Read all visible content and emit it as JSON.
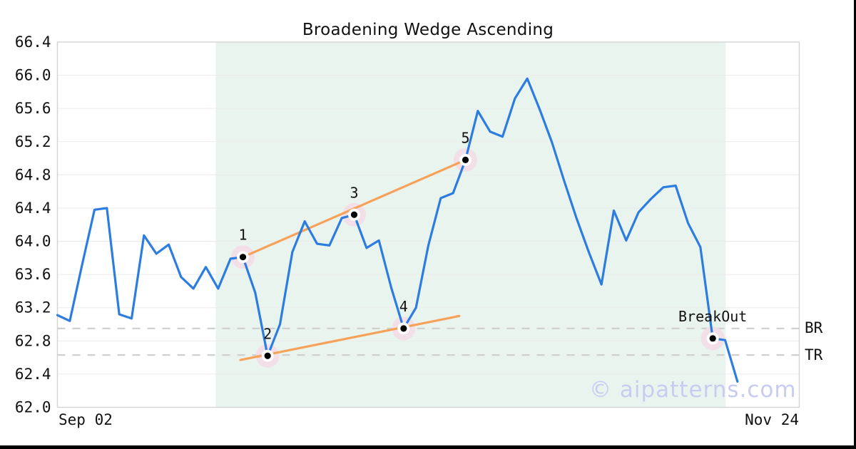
{
  "page": {
    "title": "Broadening Wedge Ascending",
    "watermark": "© aipatterns.com"
  },
  "chart_data": {
    "type": "line",
    "title": "Broadening Wedge Ascending",
    "xlim": [
      0,
      60
    ],
    "ylim": [
      62.0,
      66.4
    ],
    "y_ticks": [
      62.0,
      62.4,
      62.8,
      63.2,
      63.6,
      64.0,
      64.4,
      64.8,
      65.2,
      65.6,
      66.0,
      66.4
    ],
    "x_tick_labels": [
      "Sep 02",
      "Nov 24"
    ],
    "grid": "horizontal",
    "legend": false,
    "series": [
      {
        "name": "price",
        "values": [
          63.11,
          63.04,
          63.72,
          64.38,
          64.4,
          63.12,
          63.07,
          64.07,
          63.85,
          63.96,
          63.57,
          63.43,
          63.69,
          63.43,
          63.79,
          63.81,
          63.38,
          62.62,
          63.0,
          63.87,
          64.24,
          63.97,
          63.95,
          64.28,
          64.32,
          63.92,
          64.01,
          63.44,
          62.95,
          63.2,
          63.95,
          64.52,
          64.58,
          64.98,
          65.57,
          65.32,
          65.26,
          65.72,
          65.96,
          65.59,
          65.19,
          64.72,
          64.27,
          63.86,
          63.48,
          64.37,
          64.01,
          64.35,
          64.51,
          64.65,
          64.67,
          64.22,
          63.93,
          62.83,
          62.81,
          62.31
        ]
      }
    ],
    "trendlines": [
      {
        "name": "upper",
        "x1": 15,
        "y1": 63.81,
        "x2": 33,
        "y2": 64.98
      },
      {
        "name": "lower",
        "x1": 14.8,
        "y1": 62.57,
        "x2": 32.5,
        "y2": 63.1
      }
    ],
    "pattern_points": [
      {
        "label": "1",
        "index": 15,
        "value": 63.81
      },
      {
        "label": "2",
        "index": 17,
        "value": 62.62
      },
      {
        "label": "3",
        "index": 24,
        "value": 64.32
      },
      {
        "label": "4",
        "index": 28,
        "value": 62.95
      },
      {
        "label": "5",
        "index": 33,
        "value": 64.98
      },
      {
        "label": "BreakOut",
        "index": 53,
        "value": 62.83
      }
    ],
    "levels": [
      {
        "label": "BR",
        "value": 62.95
      },
      {
        "label": "TR",
        "value": 62.63
      }
    ],
    "shaded_region": {
      "x1": 12.8,
      "x2": 54.05
    },
    "colors": {
      "line": "#2d7de1",
      "trend": "#f7a25a",
      "shade": "#eaf4ef",
      "halo": "#f3dfe7",
      "grid": "#ebebeb",
      "border": "#d4d4d4",
      "dashed": "#d0d0d0",
      "text": "#111111",
      "watermark": "#c9ccf1"
    }
  }
}
